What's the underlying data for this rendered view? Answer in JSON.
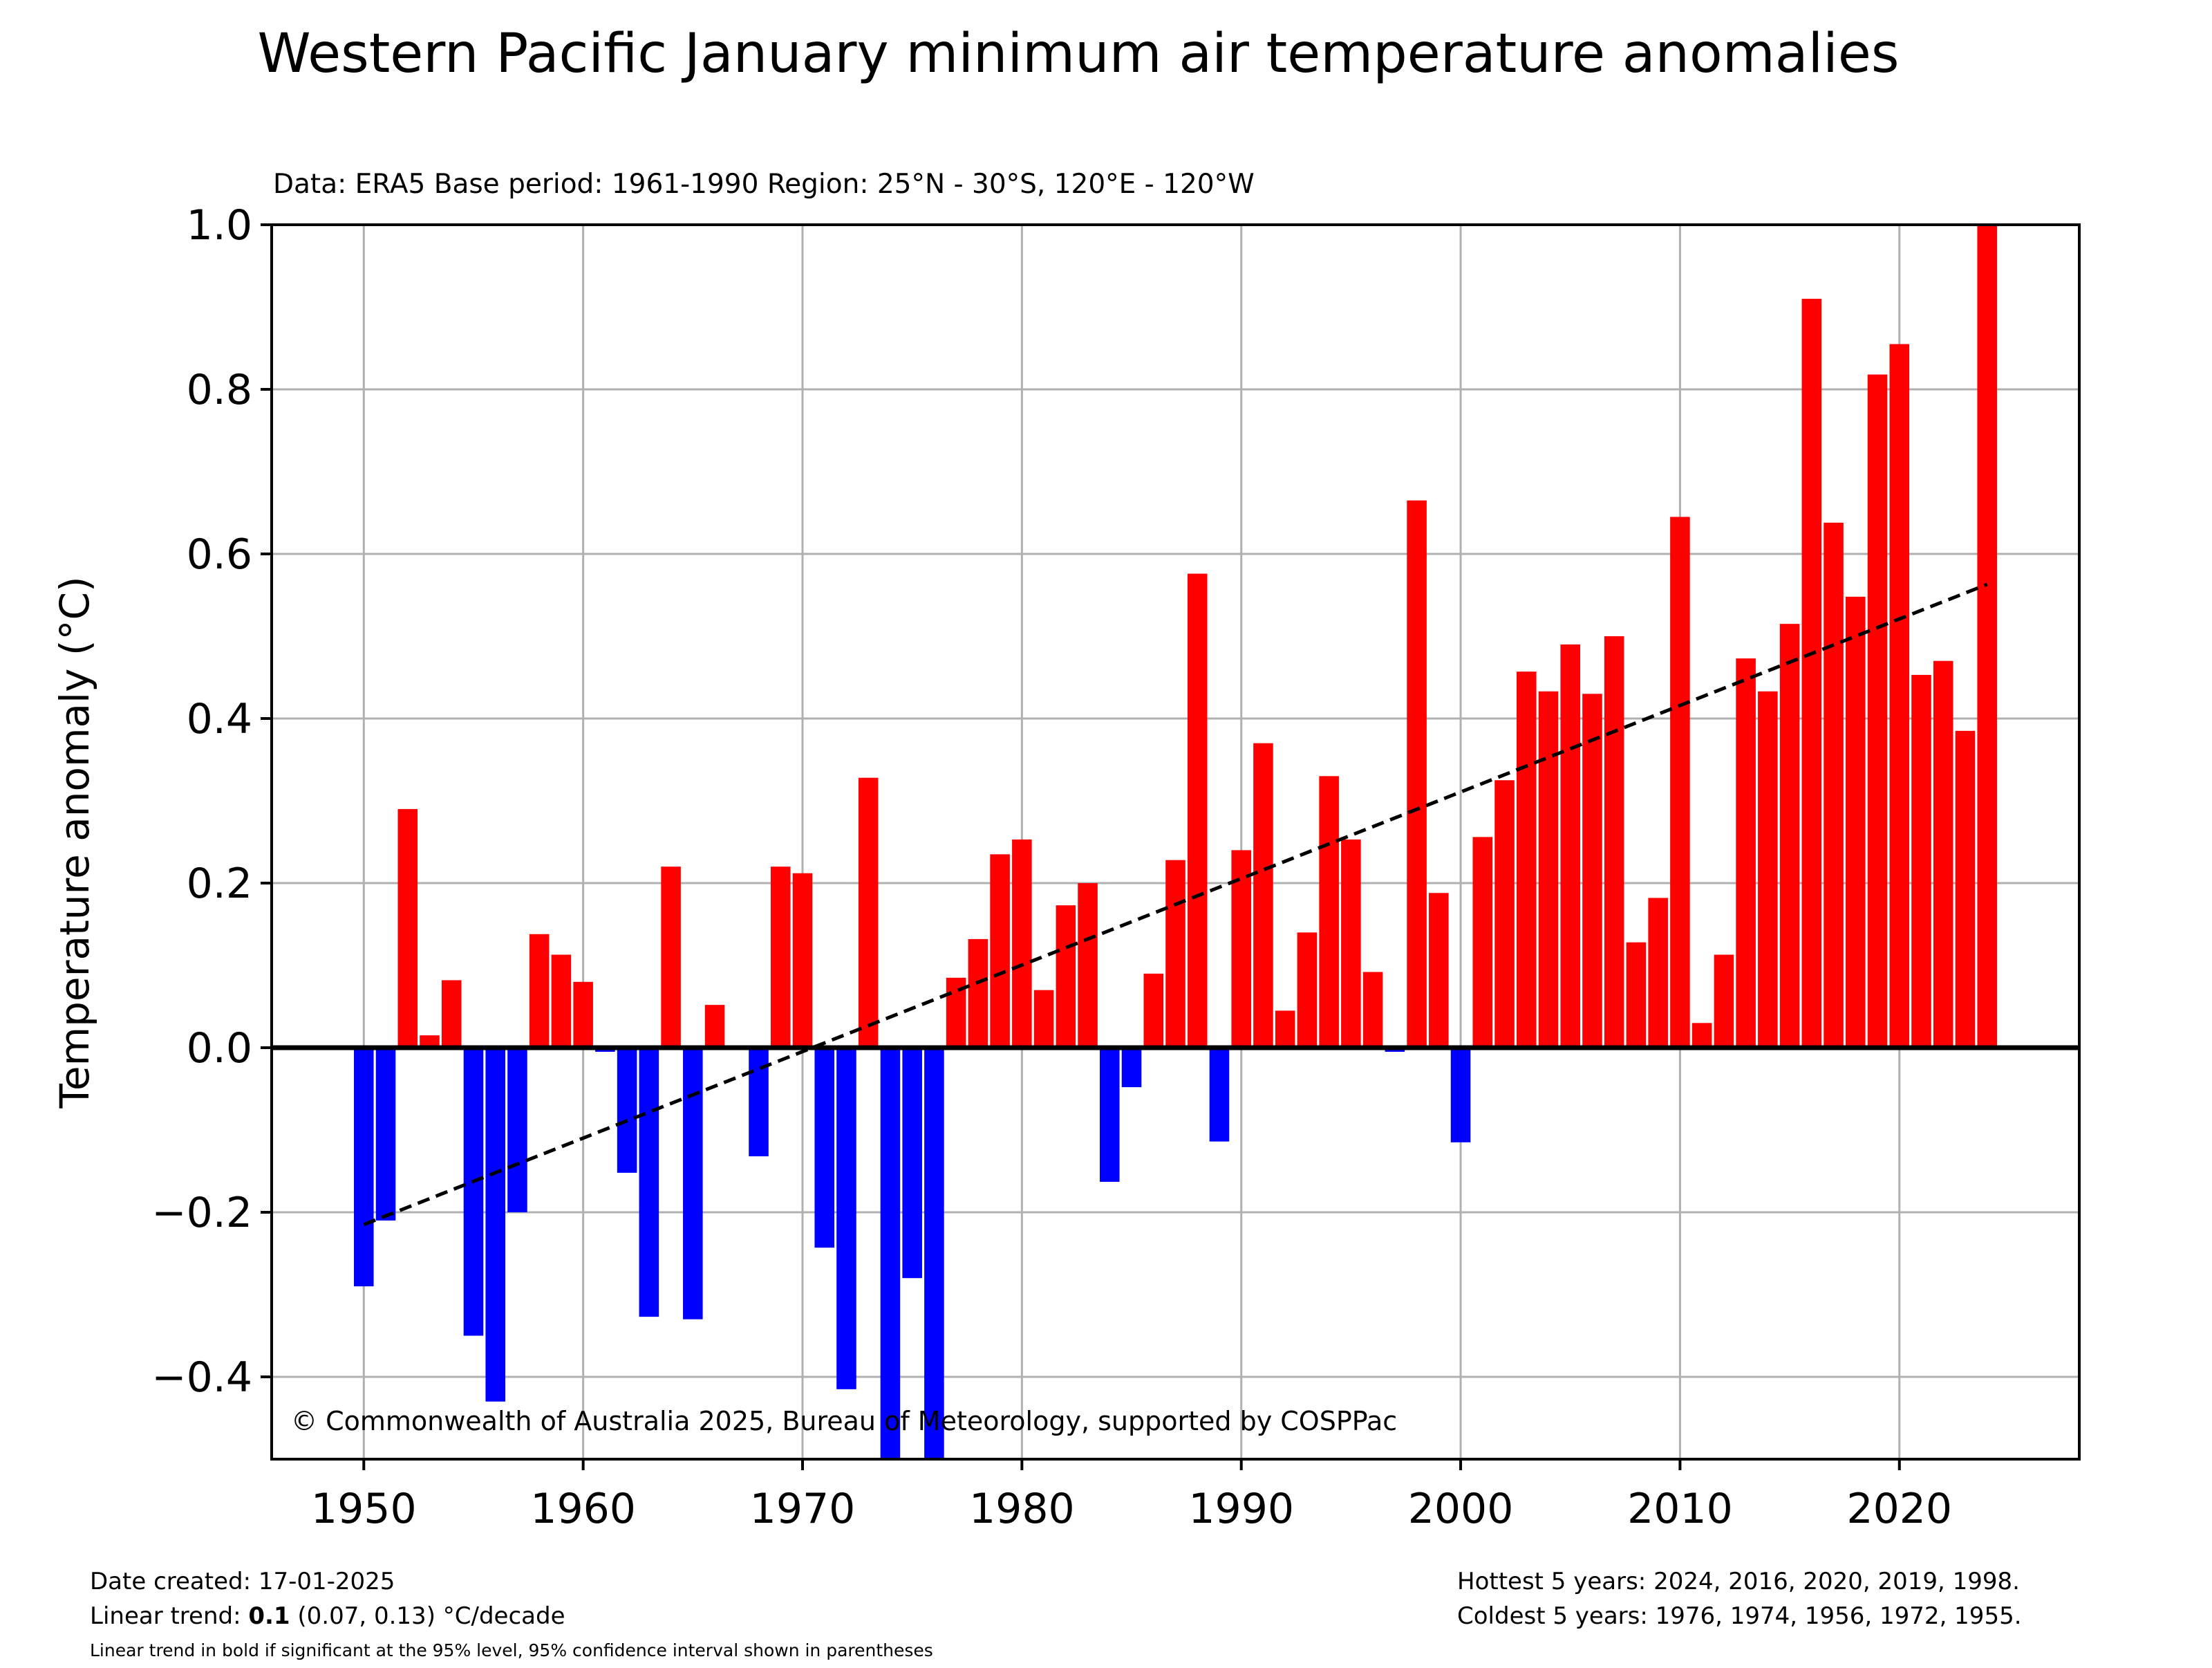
{
  "chart_data": {
    "type": "bar",
    "title": "Western Pacific January minimum air temperature anomalies",
    "subtitle": "Data: ERA5  Base period: 1961-1990  Region: 25°N - 30°S, 120°E - 120°W",
    "xlabel": "",
    "ylabel": "Temperature anomaly (°C)",
    "xlim": [
      1945.8,
      2028.2
    ],
    "ylim": [
      -0.5,
      1.0
    ],
    "x_ticks": [
      1950,
      1960,
      1970,
      1980,
      1990,
      2000,
      2010,
      2020
    ],
    "y_ticks": [
      {
        "value": -0.4,
        "label": "−0.4"
      },
      {
        "value": -0.2,
        "label": "−0.2"
      },
      {
        "value": 0.0,
        "label": "0.0"
      },
      {
        "value": 0.2,
        "label": "0.2"
      },
      {
        "value": 0.4,
        "label": "0.4"
      },
      {
        "value": 0.6,
        "label": "0.6"
      },
      {
        "value": 0.8,
        "label": "0.8"
      },
      {
        "value": 1.0,
        "label": "1.0"
      }
    ],
    "grid": true,
    "positive_color": "#ff0000",
    "negative_color": "#0000ff",
    "trend_color": "#000000",
    "x": [
      1950,
      1951,
      1952,
      1953,
      1954,
      1955,
      1956,
      1957,
      1958,
      1959,
      1960,
      1961,
      1962,
      1963,
      1964,
      1965,
      1966,
      1967,
      1968,
      1969,
      1970,
      1971,
      1972,
      1973,
      1974,
      1975,
      1976,
      1977,
      1978,
      1979,
      1980,
      1981,
      1982,
      1983,
      1984,
      1985,
      1986,
      1987,
      1988,
      1989,
      1990,
      1991,
      1992,
      1993,
      1994,
      1995,
      1996,
      1997,
      1998,
      1999,
      2000,
      2001,
      2002,
      2003,
      2004,
      2005,
      2006,
      2007,
      2008,
      2009,
      2010,
      2011,
      2012,
      2013,
      2014,
      2015,
      2016,
      2017,
      2018,
      2019,
      2020,
      2021,
      2022,
      2023,
      2024
    ],
    "values": [
      -0.29,
      -0.21,
      0.29,
      0.015,
      0.082,
      -0.35,
      -0.43,
      -0.2,
      0.138,
      0.113,
      0.08,
      -0.005,
      -0.152,
      -0.327,
      0.22,
      -0.33,
      0.052,
      0.0,
      -0.132,
      0.22,
      0.212,
      -0.243,
      -0.415,
      0.328,
      -0.5,
      -0.28,
      -0.5,
      0.085,
      0.132,
      0.235,
      0.253,
      0.07,
      0.173,
      0.2,
      -0.163,
      -0.048,
      0.09,
      0.228,
      0.576,
      -0.114,
      0.24,
      0.37,
      0.045,
      0.14,
      0.33,
      0.253,
      0.092,
      -0.005,
      0.665,
      0.188,
      -0.115,
      0.256,
      0.325,
      0.457,
      0.433,
      0.49,
      0.43,
      0.5,
      0.128,
      0.182,
      0.645,
      0.03,
      0.113,
      0.473,
      0.433,
      0.515,
      0.91,
      0.638,
      0.548,
      0.818,
      0.855,
      0.453,
      0.47,
      0.385,
      1.0
    ],
    "trend": {
      "x": [
        1950,
        2024
      ],
      "y": [
        -0.215,
        0.563
      ]
    },
    "annotation": "© Commonwealth of Australia 2025, Bureau of Meteorology, supported by COSPPac"
  },
  "footer": {
    "date_created": "Date created: 17-01-2025",
    "trend_prefix": "Linear trend: ",
    "trend_value": "0.1",
    "trend_suffix": " (0.07, 0.13) °C/decade",
    "note": "Linear trend in bold if significant at the 95% level, 95% confidence interval shown in parentheses",
    "hottest": "Hottest 5 years: 2024, 2016, 2020, 2019, 1998.",
    "coldest": "Coldest 5 years: 1976, 1974, 1956, 1972, 1955."
  }
}
